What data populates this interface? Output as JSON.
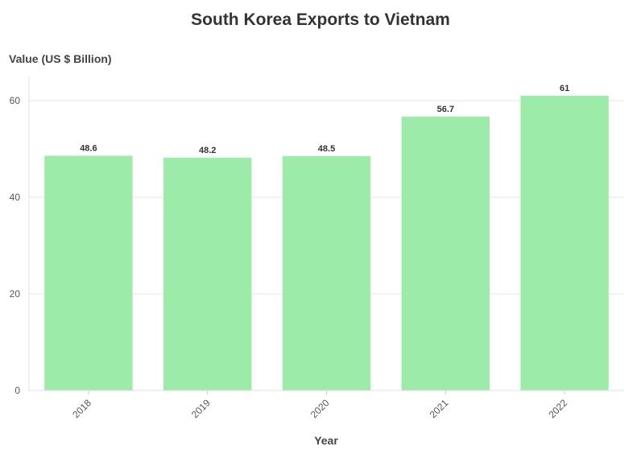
{
  "chart_data": {
    "type": "bar",
    "title": "South Korea Exports to Vietnam",
    "xlabel": "Year",
    "ylabel": "Value (US $ Billion)",
    "categories": [
      "2018",
      "2019",
      "2020",
      "2021",
      "2022"
    ],
    "values": [
      48.6,
      48.2,
      48.5,
      56.7,
      61
    ],
    "data_labels": [
      "48.6",
      "48.2",
      "48.5",
      "56.7",
      "61"
    ],
    "ylim": [
      0,
      65
    ],
    "yticks": [
      0,
      20,
      40,
      60
    ],
    "ytick_labels": [
      "0",
      "20",
      "40",
      "60"
    ],
    "grid": true,
    "bar_color": "#9deba9",
    "x_tick_rotation": "-45"
  }
}
